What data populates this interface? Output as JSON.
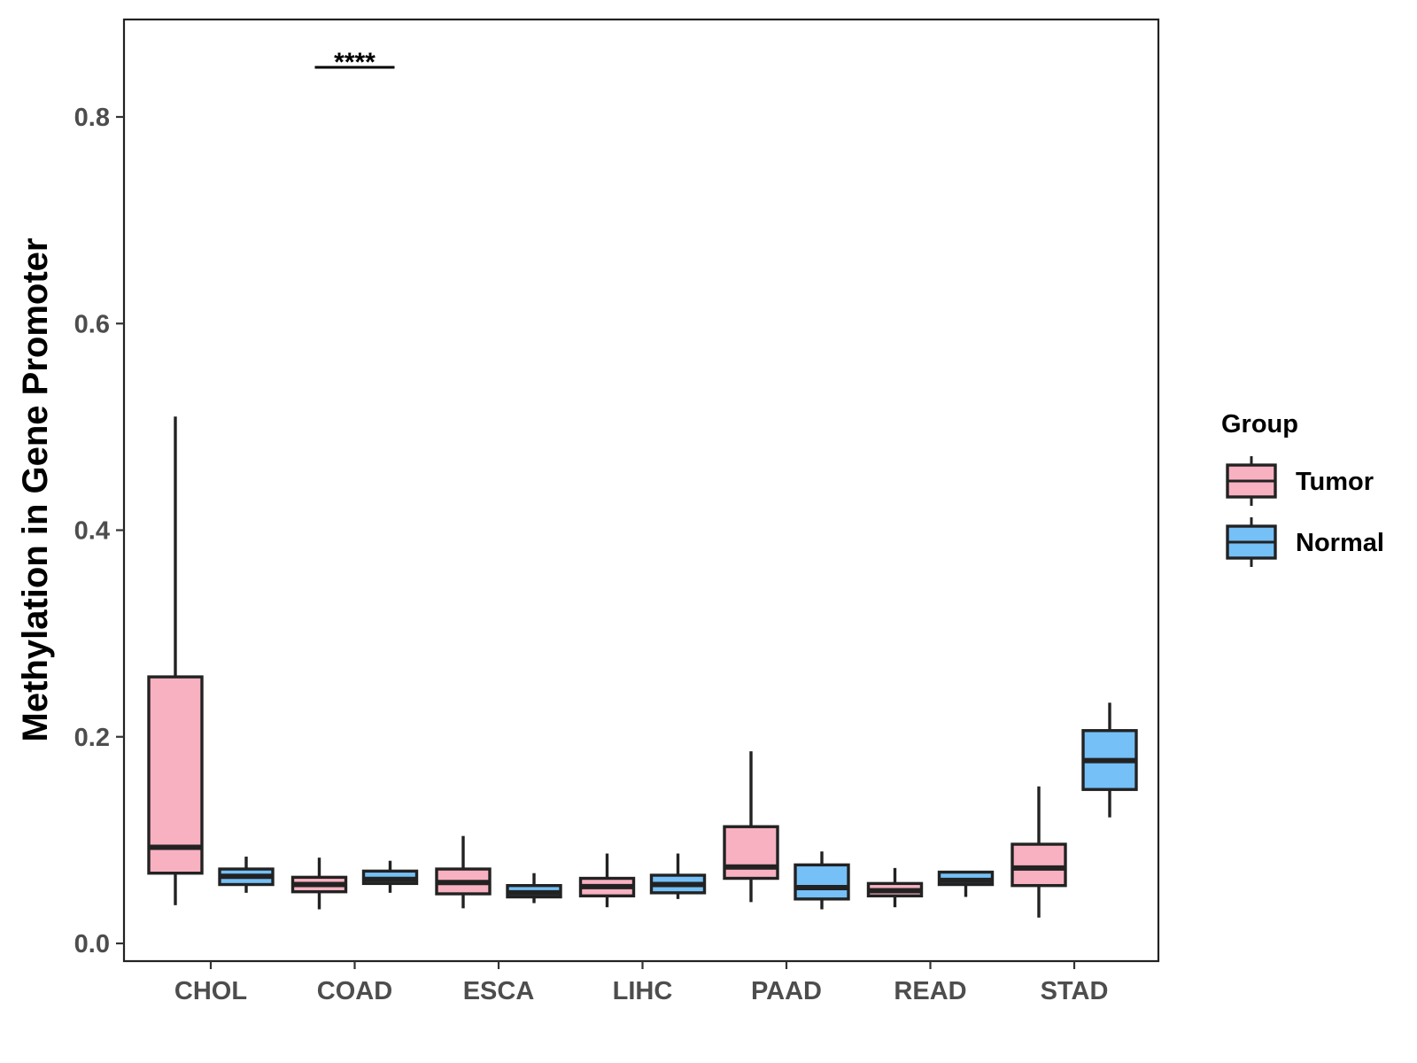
{
  "chart_data": {
    "type": "boxplot",
    "title": "",
    "xlabel": "",
    "ylabel": "Methylation in Gene Promoter",
    "ylim": [
      -0.017,
      0.893
    ],
    "yticks": [
      "0.0",
      "0.2",
      "0.4",
      "0.6",
      "0.8"
    ],
    "categories": [
      "CHOL",
      "COAD",
      "ESCA",
      "LIHC",
      "PAAD",
      "READ",
      "STAD"
    ],
    "grid": false,
    "legend": {
      "title": "Group",
      "position": "right"
    },
    "colors": {
      "Tumor": "#f8b1c1",
      "Normal": "#74c0f7",
      "outline": "#222222"
    },
    "series": [
      {
        "name": "Tumor",
        "boxes": [
          {
            "category": "CHOL",
            "whisker_low": 0.037,
            "q1": 0.068,
            "median": 0.093,
            "q3": 0.258,
            "whisker_high": 0.51
          },
          {
            "category": "COAD",
            "whisker_low": 0.033,
            "q1": 0.05,
            "median": 0.057,
            "q3": 0.064,
            "whisker_high": 0.083
          },
          {
            "category": "ESCA",
            "whisker_low": 0.034,
            "q1": 0.048,
            "median": 0.059,
            "q3": 0.072,
            "whisker_high": 0.104
          },
          {
            "category": "LIHC",
            "whisker_low": 0.035,
            "q1": 0.046,
            "median": 0.055,
            "q3": 0.063,
            "whisker_high": 0.087
          },
          {
            "category": "PAAD",
            "whisker_low": 0.04,
            "q1": 0.063,
            "median": 0.074,
            "q3": 0.113,
            "whisker_high": 0.186
          },
          {
            "category": "READ",
            "whisker_low": 0.035,
            "q1": 0.046,
            "median": 0.051,
            "q3": 0.058,
            "whisker_high": 0.073
          },
          {
            "category": "STAD",
            "whisker_low": 0.025,
            "q1": 0.056,
            "median": 0.073,
            "q3": 0.096,
            "whisker_high": 0.152
          }
        ]
      },
      {
        "name": "Normal",
        "boxes": [
          {
            "category": "CHOL",
            "whisker_low": 0.049,
            "q1": 0.057,
            "median": 0.065,
            "q3": 0.072,
            "whisker_high": 0.084
          },
          {
            "category": "COAD",
            "whisker_low": 0.049,
            "q1": 0.058,
            "median": 0.062,
            "q3": 0.07,
            "whisker_high": 0.08
          },
          {
            "category": "ESCA",
            "whisker_low": 0.039,
            "q1": 0.045,
            "median": 0.049,
            "q3": 0.056,
            "whisker_high": 0.068
          },
          {
            "category": "LIHC",
            "whisker_low": 0.043,
            "q1": 0.049,
            "median": 0.057,
            "q3": 0.066,
            "whisker_high": 0.087
          },
          {
            "category": "PAAD",
            "whisker_low": 0.033,
            "q1": 0.043,
            "median": 0.054,
            "q3": 0.076,
            "whisker_high": 0.089
          },
          {
            "category": "READ",
            "whisker_low": 0.045,
            "q1": 0.057,
            "median": 0.061,
            "q3": 0.069,
            "whisker_high": 0.069
          },
          {
            "category": "STAD",
            "whisker_low": 0.122,
            "q1": 0.149,
            "median": 0.177,
            "q3": 0.206,
            "whisker_high": 0.233
          }
        ]
      }
    ],
    "annotations": [
      {
        "text": "****",
        "category": "COAD",
        "y": 0.848
      }
    ]
  }
}
